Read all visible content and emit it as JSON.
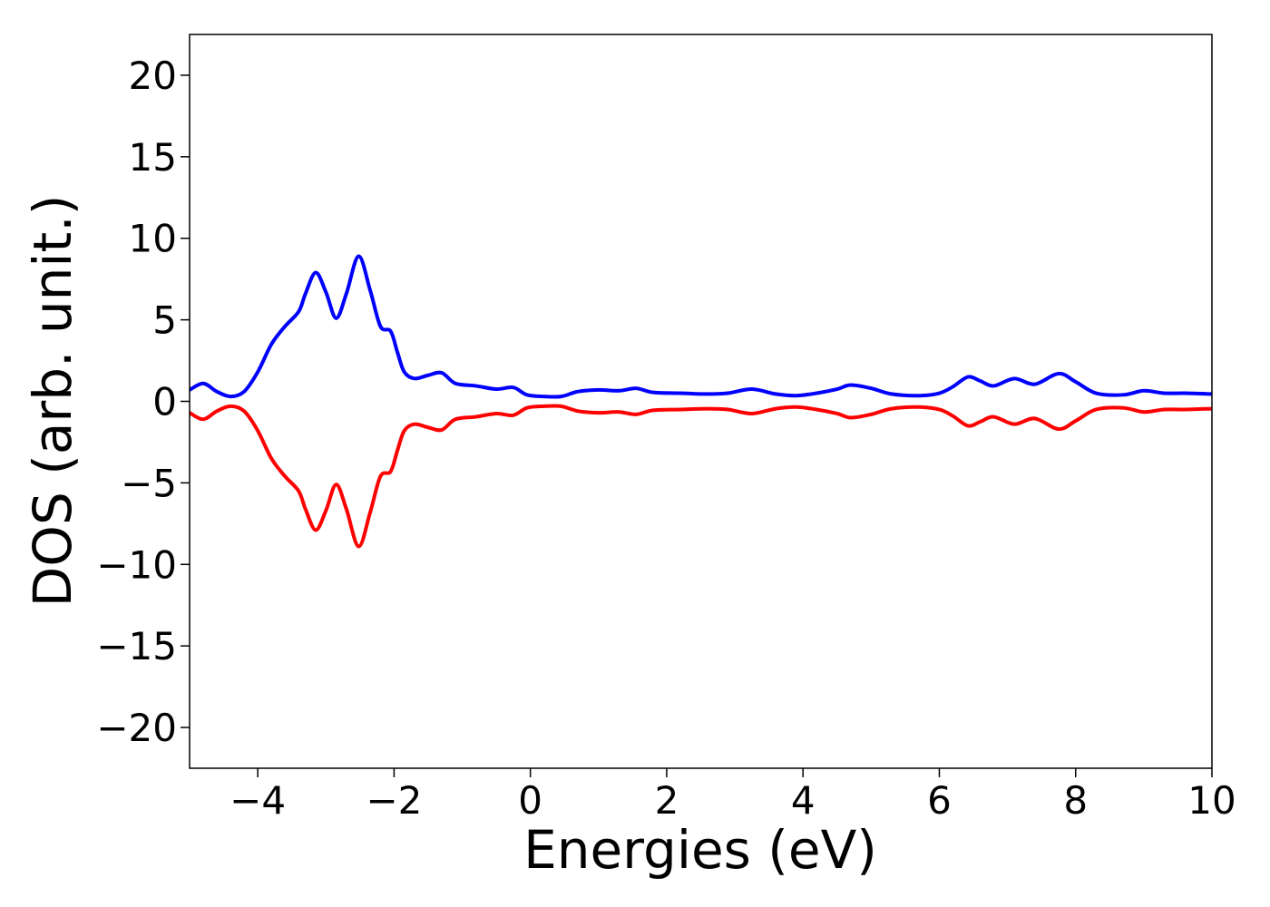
{
  "chart_data": {
    "type": "line",
    "title": "",
    "xlabel": "Energies (eV)",
    "ylabel": "DOS (arb. unit.)",
    "xlim": [
      -5,
      10
    ],
    "ylim": [
      -22.5,
      22.5
    ],
    "xticks": [
      -4,
      -2,
      0,
      2,
      4,
      6,
      8,
      10
    ],
    "yticks": [
      -20,
      -15,
      -10,
      -5,
      0,
      5,
      10,
      15,
      20
    ],
    "xtick_labels": [
      "−4",
      "−2",
      "0",
      "2",
      "4",
      "6",
      "8",
      "10"
    ],
    "ytick_labels": [
      "−20",
      "−15",
      "−10",
      "−5",
      "0",
      "5",
      "10",
      "15",
      "20"
    ],
    "grid": false,
    "legend": "none",
    "series": [
      {
        "color": "#0000ff",
        "x": [
          -5.0,
          -4.8,
          -4.6,
          -4.4,
          -4.2,
          -4.0,
          -3.8,
          -3.6,
          -3.4,
          -3.3,
          -3.15,
          -3.0,
          -2.85,
          -2.7,
          -2.52,
          -2.35,
          -2.2,
          -2.05,
          -1.95,
          -1.85,
          -1.7,
          -1.5,
          -1.3,
          -1.1,
          -0.8,
          -0.5,
          -0.25,
          -0.05,
          0.2,
          0.45,
          0.7,
          1.0,
          1.3,
          1.55,
          1.8,
          2.2,
          2.6,
          2.9,
          3.25,
          3.6,
          3.9,
          4.2,
          4.5,
          4.7,
          5.0,
          5.3,
          5.7,
          6.0,
          6.2,
          6.42,
          6.6,
          6.8,
          7.1,
          7.4,
          7.75,
          8.0,
          8.3,
          8.7,
          9.0,
          9.3,
          9.6,
          10.0
        ],
        "y": [
          0.7,
          1.1,
          0.6,
          0.3,
          0.6,
          1.8,
          3.5,
          4.6,
          5.5,
          6.6,
          7.9,
          6.7,
          5.1,
          6.6,
          8.9,
          6.8,
          4.6,
          4.3,
          3.0,
          1.8,
          1.4,
          1.6,
          1.75,
          1.1,
          0.95,
          0.75,
          0.85,
          0.4,
          0.3,
          0.3,
          0.6,
          0.7,
          0.65,
          0.8,
          0.55,
          0.5,
          0.45,
          0.5,
          0.75,
          0.45,
          0.35,
          0.5,
          0.75,
          1.0,
          0.8,
          0.45,
          0.35,
          0.5,
          0.9,
          1.5,
          1.25,
          0.95,
          1.4,
          1.05,
          1.7,
          1.2,
          0.5,
          0.4,
          0.65,
          0.5,
          0.5,
          0.45
        ]
      },
      {
        "color": "#ff0000",
        "x": [
          -5.0,
          -4.8,
          -4.6,
          -4.4,
          -4.2,
          -4.0,
          -3.8,
          -3.6,
          -3.4,
          -3.3,
          -3.15,
          -3.0,
          -2.85,
          -2.7,
          -2.52,
          -2.35,
          -2.2,
          -2.05,
          -1.95,
          -1.85,
          -1.7,
          -1.5,
          -1.3,
          -1.1,
          -0.8,
          -0.5,
          -0.25,
          -0.05,
          0.2,
          0.45,
          0.7,
          1.0,
          1.3,
          1.55,
          1.8,
          2.2,
          2.6,
          2.9,
          3.25,
          3.6,
          3.9,
          4.2,
          4.5,
          4.7,
          5.0,
          5.3,
          5.7,
          6.0,
          6.2,
          6.42,
          6.6,
          6.8,
          7.1,
          7.4,
          7.75,
          8.0,
          8.3,
          8.7,
          9.0,
          9.3,
          9.6,
          10.0
        ],
        "y": [
          -0.7,
          -1.1,
          -0.6,
          -0.3,
          -0.6,
          -1.8,
          -3.5,
          -4.6,
          -5.5,
          -6.6,
          -7.9,
          -6.7,
          -5.1,
          -6.6,
          -8.9,
          -6.8,
          -4.6,
          -4.3,
          -3.0,
          -1.8,
          -1.4,
          -1.6,
          -1.75,
          -1.1,
          -0.95,
          -0.75,
          -0.85,
          -0.4,
          -0.3,
          -0.3,
          -0.6,
          -0.7,
          -0.65,
          -0.8,
          -0.55,
          -0.5,
          -0.45,
          -0.5,
          -0.75,
          -0.45,
          -0.35,
          -0.5,
          -0.75,
          -1.0,
          -0.8,
          -0.45,
          -0.35,
          -0.5,
          -0.9,
          -1.5,
          -1.25,
          -0.95,
          -1.4,
          -1.05,
          -1.7,
          -1.2,
          -0.5,
          -0.4,
          -0.65,
          -0.5,
          -0.5,
          -0.45
        ]
      }
    ]
  }
}
